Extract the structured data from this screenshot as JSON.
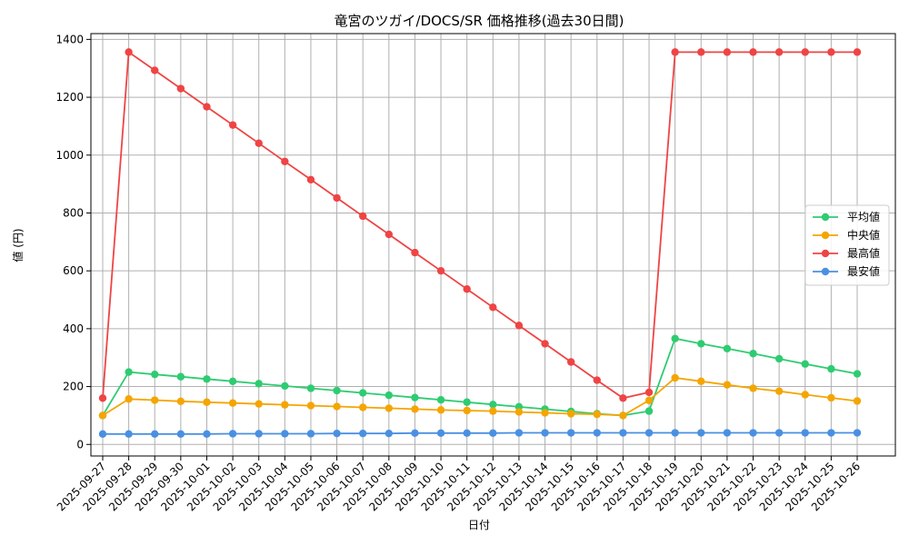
{
  "chart_data": {
    "type": "line",
    "title": "竜宮のツガイ/DOCS/SR 価格推移(過去30日間)",
    "xlabel": "日付",
    "ylabel": "値 (円)",
    "ylim": [
      -40,
      1420
    ],
    "yticks": [
      0,
      200,
      400,
      600,
      800,
      1000,
      1200,
      1400
    ],
    "grid": true,
    "legend_position": "center-right",
    "categories": [
      "2025-09-27",
      "2025-09-28",
      "2025-09-29",
      "2025-09-30",
      "2025-10-01",
      "2025-10-02",
      "2025-10-03",
      "2025-10-04",
      "2025-10-05",
      "2025-10-06",
      "2025-10-07",
      "2025-10-08",
      "2025-10-09",
      "2025-10-10",
      "2025-10-11",
      "2025-10-12",
      "2025-10-13",
      "2025-10-14",
      "2025-10-15",
      "2025-10-16",
      "2025-10-17",
      "2025-10-18",
      "2025-10-19",
      "2025-10-20",
      "2025-10-21",
      "2025-10-22",
      "2025-10-23",
      "2025-10-24",
      "2025-10-25",
      "2025-10-26"
    ],
    "series": [
      {
        "name": "平均値",
        "color": "#2ecc71",
        "values": [
          100,
          250,
          242,
          234,
          226,
          218,
          210,
          202,
          194,
          186,
          178,
          170,
          162,
          154,
          146,
          138,
          130,
          122,
          114,
          106,
          100,
          115,
          366,
          348,
          331,
          314,
          296,
          278,
          261,
          244
        ]
      },
      {
        "name": "中央値",
        "color": "#f5a500",
        "values": [
          100,
          157,
          153,
          149,
          146,
          143,
          140,
          137,
          134,
          131,
          128,
          125,
          122,
          119,
          117,
          115,
          112,
          109,
          106,
          104,
          100,
          152,
          230,
          218,
          206,
          194,
          184,
          172,
          161,
          150
        ]
      },
      {
        "name": "最高値",
        "color": "#ef4444",
        "values": [
          160,
          1356,
          1293,
          1230,
          1167,
          1104,
          1041,
          978,
          915,
          852,
          789,
          726,
          663,
          600,
          537,
          474,
          411,
          348,
          285,
          222,
          160,
          180,
          1356,
          1356,
          1356,
          1356,
          1356,
          1356,
          1356,
          1356
        ]
      },
      {
        "name": "最安値",
        "color": "#4a90e2",
        "values": [
          36,
          36,
          36,
          36,
          36,
          37,
          37,
          37,
          37,
          38,
          38,
          38,
          39,
          39,
          39,
          39,
          40,
          40,
          40,
          40,
          40,
          40,
          40,
          40,
          40,
          40,
          40,
          40,
          40,
          40
        ]
      }
    ]
  }
}
